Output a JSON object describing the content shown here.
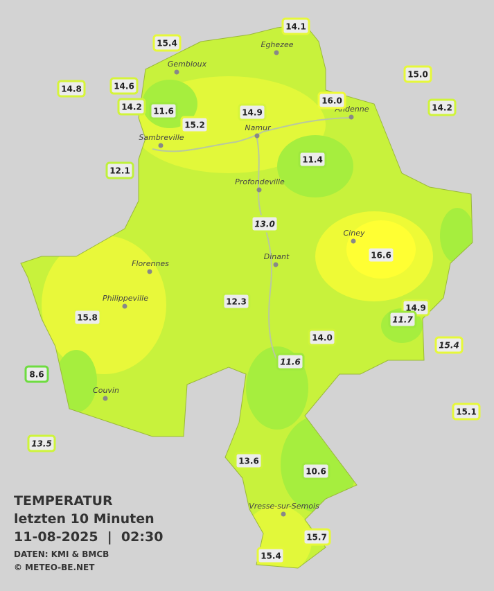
{
  "title": "TEMPERATUR",
  "subtitle": "letzten 10 Minuten",
  "datetime": "11-08-2025  |  02:30",
  "source": "DATEN: KMI & BMCB",
  "copyright": "© METEO-BE.NET",
  "cities": [
    "Eghezee",
    "Gembloux",
    "Andenne",
    "Namur",
    "Sambreville",
    "Profondeville",
    "Ciney",
    "Dinant",
    "Florennes",
    "Philippeville",
    "Couvin",
    "Vresse-sur-Semois"
  ],
  "stations": [
    {
      "label": "14.1",
      "italic": false
    },
    {
      "label": "15.4",
      "italic": false
    },
    {
      "label": "15.0",
      "italic": false
    },
    {
      "label": "14.8",
      "italic": false
    },
    {
      "label": "14.6",
      "italic": false
    },
    {
      "label": "14.2",
      "italic": false
    },
    {
      "label": "11.6",
      "italic": false
    },
    {
      "label": "16.0",
      "italic": false
    },
    {
      "label": "14.2",
      "italic": false
    },
    {
      "label": "14.9",
      "italic": false
    },
    {
      "label": "15.2",
      "italic": false
    },
    {
      "label": "12.1",
      "italic": false
    },
    {
      "label": "11.4",
      "italic": false
    },
    {
      "label": "13.0",
      "italic": true
    },
    {
      "label": "16.6",
      "italic": false
    },
    {
      "label": "12.3",
      "italic": false
    },
    {
      "label": "15.8",
      "italic": false
    },
    {
      "label": "14.9",
      "italic": false
    },
    {
      "label": "11.7",
      "italic": true
    },
    {
      "label": "14.0",
      "italic": false
    },
    {
      "label": "15.4",
      "italic": true
    },
    {
      "label": "11.6",
      "italic": true
    },
    {
      "label": "8.6",
      "italic": false
    },
    {
      "label": "15.1",
      "italic": false
    },
    {
      "label": "13.5",
      "italic": true
    },
    {
      "label": "13.6",
      "italic": false
    },
    {
      "label": "10.6",
      "italic": false
    },
    {
      "label": "15.7",
      "italic": false
    },
    {
      "label": "15.4",
      "italic": false
    }
  ]
}
